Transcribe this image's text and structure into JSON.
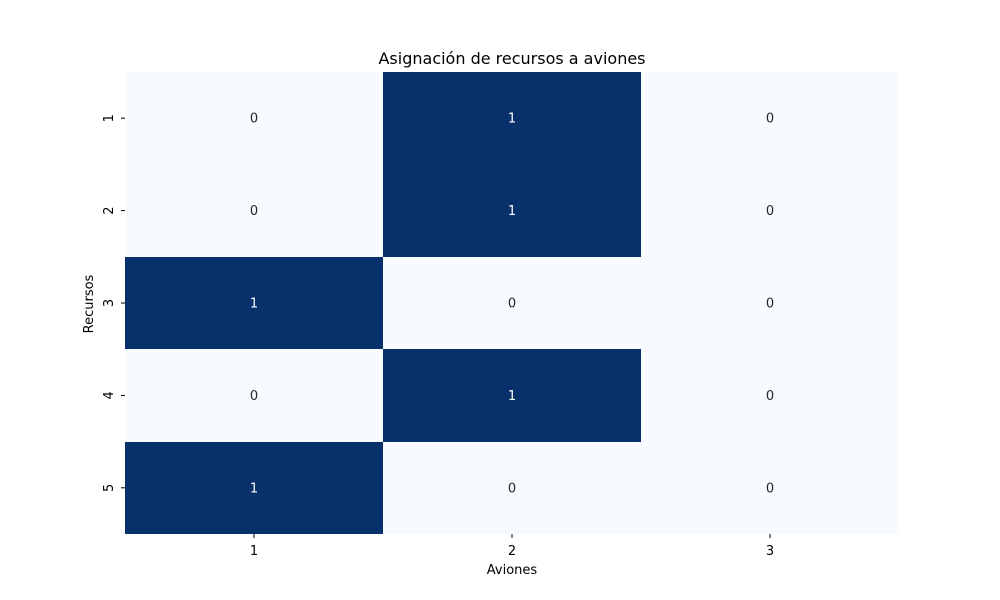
{
  "chart_data": {
    "type": "heatmap",
    "title": "Asignación de recursos a aviones",
    "xlabel": "Aviones",
    "ylabel": "Recursos",
    "x_categories": [
      "1",
      "2",
      "3"
    ],
    "y_categories": [
      "1",
      "2",
      "3",
      "4",
      "5"
    ],
    "values": [
      [
        0,
        1,
        0
      ],
      [
        0,
        1,
        0
      ],
      [
        1,
        0,
        0
      ],
      [
        0,
        1,
        0
      ],
      [
        1,
        0,
        0
      ]
    ],
    "value_range": [
      0,
      1
    ],
    "colormap": "Blues",
    "colors": {
      "low": "#f7fbff",
      "high": "#08306b",
      "label_on_low": "#262626",
      "label_on_high": "#ffffff",
      "axis_text": "#000000"
    },
    "colorbar": false,
    "annotated": true
  }
}
